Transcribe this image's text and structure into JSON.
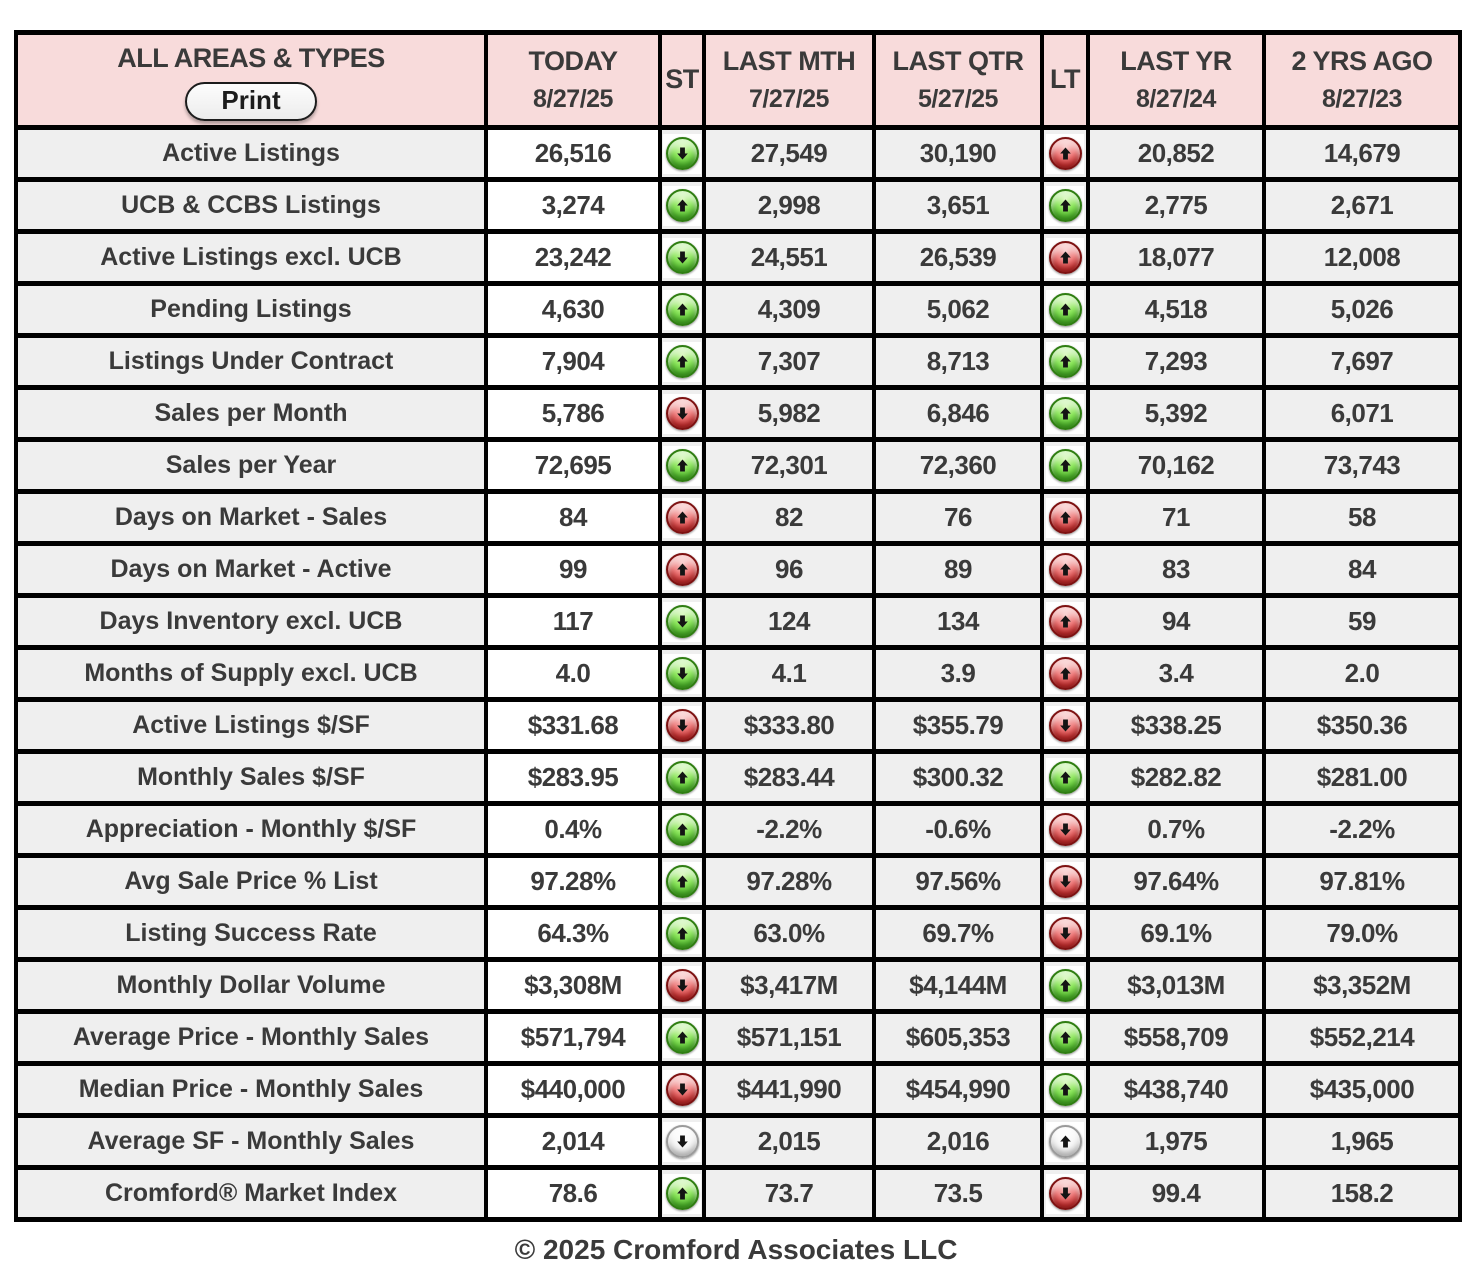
{
  "header": {
    "title": "ALL AREAS & TYPES",
    "print_label": "Print",
    "columns": [
      {
        "label": "TODAY",
        "date": "8/27/25"
      },
      {
        "label": "ST",
        "date": ""
      },
      {
        "label": "LAST MTH",
        "date": "7/27/25"
      },
      {
        "label": "LAST QTR",
        "date": "5/27/25"
      },
      {
        "label": "LT",
        "date": ""
      },
      {
        "label": "LAST YR",
        "date": "8/27/24"
      },
      {
        "label": "2 YRS AGO",
        "date": "8/27/23"
      }
    ]
  },
  "rows": [
    {
      "label": "Active Listings",
      "today": "26,516",
      "st": {
        "dir": "down",
        "color": "green"
      },
      "last_mth": "27,549",
      "last_qtr": "30,190",
      "lt": {
        "dir": "up",
        "color": "red"
      },
      "last_yr": "20,852",
      "two_yrs_ago": "14,679"
    },
    {
      "label": "UCB & CCBS Listings",
      "today": "3,274",
      "st": {
        "dir": "up",
        "color": "green"
      },
      "last_mth": "2,998",
      "last_qtr": "3,651",
      "lt": {
        "dir": "up",
        "color": "green"
      },
      "last_yr": "2,775",
      "two_yrs_ago": "2,671"
    },
    {
      "label": "Active Listings excl. UCB",
      "today": "23,242",
      "st": {
        "dir": "down",
        "color": "green"
      },
      "last_mth": "24,551",
      "last_qtr": "26,539",
      "lt": {
        "dir": "up",
        "color": "red"
      },
      "last_yr": "18,077",
      "two_yrs_ago": "12,008"
    },
    {
      "label": "Pending Listings",
      "today": "4,630",
      "st": {
        "dir": "up",
        "color": "green"
      },
      "last_mth": "4,309",
      "last_qtr": "5,062",
      "lt": {
        "dir": "up",
        "color": "green"
      },
      "last_yr": "4,518",
      "two_yrs_ago": "5,026"
    },
    {
      "label": "Listings Under Contract",
      "today": "7,904",
      "st": {
        "dir": "up",
        "color": "green"
      },
      "last_mth": "7,307",
      "last_qtr": "8,713",
      "lt": {
        "dir": "up",
        "color": "green"
      },
      "last_yr": "7,293",
      "two_yrs_ago": "7,697"
    },
    {
      "label": "Sales per Month",
      "today": "5,786",
      "st": {
        "dir": "down",
        "color": "red"
      },
      "last_mth": "5,982",
      "last_qtr": "6,846",
      "lt": {
        "dir": "up",
        "color": "green"
      },
      "last_yr": "5,392",
      "two_yrs_ago": "6,071"
    },
    {
      "label": "Sales per Year",
      "today": "72,695",
      "st": {
        "dir": "up",
        "color": "green"
      },
      "last_mth": "72,301",
      "last_qtr": "72,360",
      "lt": {
        "dir": "up",
        "color": "green"
      },
      "last_yr": "70,162",
      "two_yrs_ago": "73,743"
    },
    {
      "label": "Days on Market - Sales",
      "today": "84",
      "st": {
        "dir": "up",
        "color": "red"
      },
      "last_mth": "82",
      "last_qtr": "76",
      "lt": {
        "dir": "up",
        "color": "red"
      },
      "last_yr": "71",
      "two_yrs_ago": "58"
    },
    {
      "label": "Days on Market - Active",
      "today": "99",
      "st": {
        "dir": "up",
        "color": "red"
      },
      "last_mth": "96",
      "last_qtr": "89",
      "lt": {
        "dir": "up",
        "color": "red"
      },
      "last_yr": "83",
      "two_yrs_ago": "84"
    },
    {
      "label": "Days Inventory excl. UCB",
      "today": "117",
      "st": {
        "dir": "down",
        "color": "green"
      },
      "last_mth": "124",
      "last_qtr": "134",
      "lt": {
        "dir": "up",
        "color": "red"
      },
      "last_yr": "94",
      "two_yrs_ago": "59"
    },
    {
      "label": "Months of Supply excl. UCB",
      "today": "4.0",
      "st": {
        "dir": "down",
        "color": "green"
      },
      "last_mth": "4.1",
      "last_qtr": "3.9",
      "lt": {
        "dir": "up",
        "color": "red"
      },
      "last_yr": "3.4",
      "two_yrs_ago": "2.0"
    },
    {
      "label": "Active Listings $/SF",
      "today": "$331.68",
      "st": {
        "dir": "down",
        "color": "red"
      },
      "last_mth": "$333.80",
      "last_qtr": "$355.79",
      "lt": {
        "dir": "down",
        "color": "red"
      },
      "last_yr": "$338.25",
      "two_yrs_ago": "$350.36"
    },
    {
      "label": "Monthly Sales $/SF",
      "today": "$283.95",
      "st": {
        "dir": "up",
        "color": "green"
      },
      "last_mth": "$283.44",
      "last_qtr": "$300.32",
      "lt": {
        "dir": "up",
        "color": "green"
      },
      "last_yr": "$282.82",
      "two_yrs_ago": "$281.00"
    },
    {
      "label": "Appreciation - Monthly $/SF",
      "today": "0.4%",
      "st": {
        "dir": "up",
        "color": "green"
      },
      "last_mth": "-2.2%",
      "last_qtr": "-0.6%",
      "lt": {
        "dir": "down",
        "color": "red"
      },
      "last_yr": "0.7%",
      "two_yrs_ago": "-2.2%"
    },
    {
      "label": "Avg Sale Price % List",
      "today": "97.28%",
      "st": {
        "dir": "up",
        "color": "green"
      },
      "last_mth": "97.28%",
      "last_qtr": "97.56%",
      "lt": {
        "dir": "down",
        "color": "red"
      },
      "last_yr": "97.64%",
      "two_yrs_ago": "97.81%"
    },
    {
      "label": "Listing Success Rate",
      "today": "64.3%",
      "st": {
        "dir": "up",
        "color": "green"
      },
      "last_mth": "63.0%",
      "last_qtr": "69.7%",
      "lt": {
        "dir": "down",
        "color": "red"
      },
      "last_yr": "69.1%",
      "two_yrs_ago": "79.0%"
    },
    {
      "label": "Monthly Dollar Volume",
      "today": "$3,308M",
      "st": {
        "dir": "down",
        "color": "red"
      },
      "last_mth": "$3,417M",
      "last_qtr": "$4,144M",
      "lt": {
        "dir": "up",
        "color": "green"
      },
      "last_yr": "$3,013M",
      "two_yrs_ago": "$3,352M"
    },
    {
      "label": "Average Price - Monthly Sales",
      "today": "$571,794",
      "st": {
        "dir": "up",
        "color": "green"
      },
      "last_mth": "$571,151",
      "last_qtr": "$605,353",
      "lt": {
        "dir": "up",
        "color": "green"
      },
      "last_yr": "$558,709",
      "two_yrs_ago": "$552,214"
    },
    {
      "label": "Median Price - Monthly Sales",
      "today": "$440,000",
      "st": {
        "dir": "down",
        "color": "red"
      },
      "last_mth": "$441,990",
      "last_qtr": "$454,990",
      "lt": {
        "dir": "up",
        "color": "green"
      },
      "last_yr": "$438,740",
      "two_yrs_ago": "$435,000"
    },
    {
      "label": "Average SF - Monthly Sales",
      "today": "2,014",
      "st": {
        "dir": "down",
        "color": "neutral"
      },
      "last_mth": "2,015",
      "last_qtr": "2,016",
      "lt": {
        "dir": "up",
        "color": "neutral"
      },
      "last_yr": "1,975",
      "two_yrs_ago": "1,965"
    },
    {
      "label": "Cromford® Market Index",
      "today": "78.6",
      "st": {
        "dir": "up",
        "color": "green"
      },
      "last_mth": "73.7",
      "last_qtr": "73.5",
      "lt": {
        "dir": "down",
        "color": "red"
      },
      "last_yr": "99.4",
      "two_yrs_ago": "158.2"
    }
  ],
  "footer": "© 2025 Cromford Associates LLC",
  "colors": {
    "header_bg": "#f8dbdb",
    "cell_gray": "#efefef",
    "today_bg": "#ffffff",
    "border": "#000000",
    "trend_up_good": "#4fbb2b",
    "trend_down_bad": "#cc2f2f",
    "trend_neutral": "#e8e8e8",
    "text": "#3a3a3a"
  }
}
